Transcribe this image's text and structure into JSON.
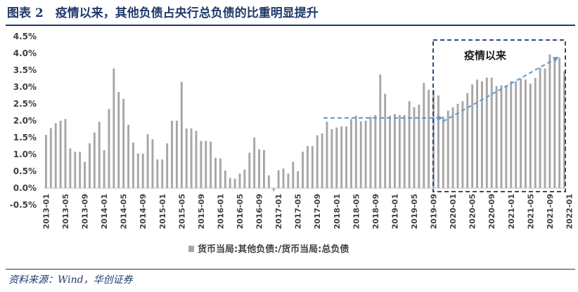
{
  "figure": {
    "title": "图表 2　疫情以来，其他负债占央行总负债的比重明显提升",
    "source": "资料来源：Wind，华创证券"
  },
  "chart_data": {
    "type": "bar",
    "legend_label": "货币当局:其他负债:/货币当局:总负债",
    "legend_position": "bottom",
    "annotation": "疫情以来",
    "y_ticks": [
      "4.5%",
      "4.0%",
      "3.5%",
      "3.0%",
      "2.5%",
      "2.0%",
      "1.5%",
      "1.0%",
      "0.5%",
      "0.0%",
      "-0.5%"
    ],
    "ylim": [
      -0.5,
      4.5
    ],
    "grid": false,
    "x_labels": [
      "2013-01",
      "2013-05",
      "2013-09",
      "2014-01",
      "2014-05",
      "2014-09",
      "2015-01",
      "2015-05",
      "2015-09",
      "2016-01",
      "2016-05",
      "2016-09",
      "2017-01",
      "2017-05",
      "2017-09",
      "2018-01",
      "2018-05",
      "2018-09",
      "2019-01",
      "2019-05",
      "2019-09",
      "2020-01",
      "2020-05",
      "2020-09",
      "2021-01",
      "2021-05",
      "2021-09",
      "2022-01"
    ],
    "series": [
      {
        "values": [
          1.58,
          1.78,
          1.93,
          2.0,
          2.05,
          1.18,
          1.08,
          1.08,
          0.78,
          1.33,
          1.65,
          1.97,
          1.13,
          2.35,
          3.55,
          2.85,
          2.65,
          1.88,
          1.35,
          1.03,
          1.02,
          1.6,
          1.45,
          0.85,
          0.85,
          1.33,
          2.0,
          2.0,
          3.15,
          1.77,
          1.77,
          1.7,
          1.4,
          1.4,
          1.38,
          0.9,
          0.88,
          0.52,
          0.3,
          0.28,
          0.43,
          0.55,
          1.05,
          1.5,
          1.15,
          1.13,
          0.38,
          -0.08,
          0.53,
          0.58,
          0.43,
          0.78,
          0.5,
          1.08,
          1.25,
          1.25,
          1.57,
          1.62,
          1.97,
          1.75,
          1.8,
          1.83,
          1.83,
          2.05,
          2.15,
          1.98,
          2.0,
          2.12,
          2.17,
          3.37,
          2.8,
          2.15,
          2.2,
          2.17,
          2.17,
          2.58,
          2.4,
          2.48,
          3.12,
          2.92,
          2.92,
          2.75,
          2.12,
          2.3,
          2.4,
          2.5,
          2.58,
          2.82,
          3.08,
          3.22,
          3.17,
          3.28,
          3.28,
          3.03,
          3.05,
          3.05,
          3.17,
          3.17,
          3.25,
          3.22,
          3.1,
          3.27,
          3.57,
          3.55,
          3.97,
          3.85,
          3.87,
          3.47
        ]
      }
    ]
  }
}
